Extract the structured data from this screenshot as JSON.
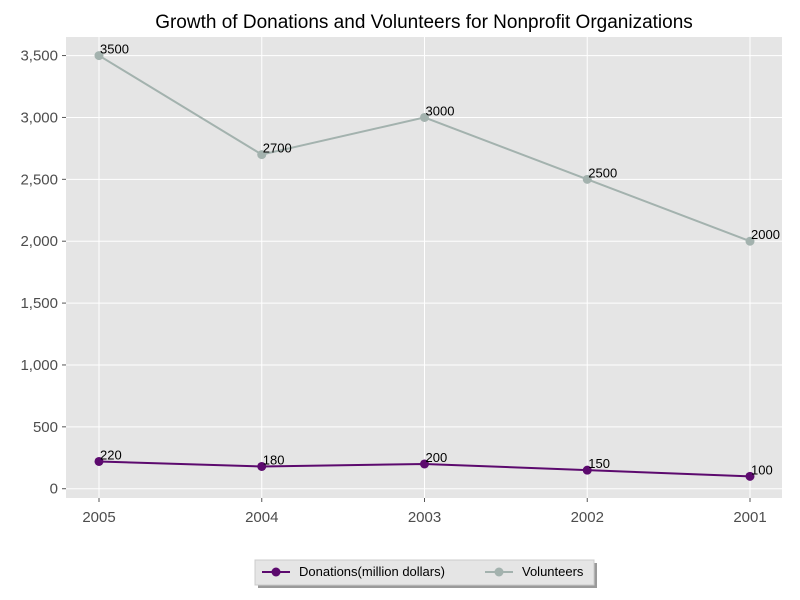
{
  "chart_data": {
    "type": "line",
    "title": "Growth of Donations and Volunteers for Nonprofit Organizations",
    "xlabel": "",
    "ylabel": "",
    "categories": [
      "2005",
      "2004",
      "2003",
      "2002",
      "2001"
    ],
    "ylim": [
      -75,
      3650
    ],
    "yticks": [
      0,
      500,
      1000,
      1500,
      2000,
      2500,
      3000,
      3500
    ],
    "ytick_labels": [
      "0",
      "500",
      "1,000",
      "1,500",
      "2,000",
      "2,500",
      "3,000",
      "3,500"
    ],
    "grid": true,
    "legend_position": "bottom-center",
    "series": [
      {
        "name": "Donations(million dollars)",
        "values": [
          220,
          180,
          200,
          150,
          100
        ],
        "labels": [
          "220",
          "180",
          "200",
          "150",
          "100"
        ],
        "color": "#5c0a6e"
      },
      {
        "name": "Volunteers",
        "values": [
          3500,
          2700,
          3000,
          2500,
          2000
        ],
        "labels": [
          "3500",
          "2700",
          "3000",
          "2500",
          "2000"
        ],
        "color": "#a3b2ae"
      }
    ],
    "background_color": "#e5e5e5",
    "grid_color": "#ffffff"
  }
}
